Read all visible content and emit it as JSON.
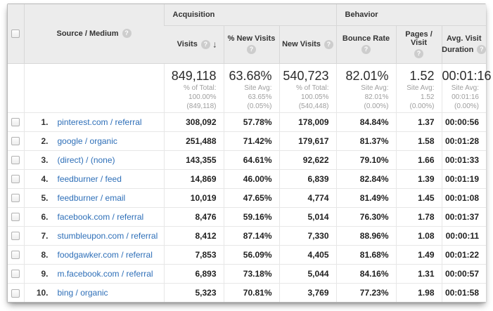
{
  "colors": {
    "link": "#2E6FB8",
    "header_bg": "#ececec"
  },
  "icons": {
    "help": "?",
    "sort_desc": "↓"
  },
  "header": {
    "source_medium": "Source / Medium",
    "acquisition": "Acquisition",
    "behavior": "Behavior",
    "visits": "Visits",
    "pct_new_visits": "% New Visits",
    "new_visits": "New Visits",
    "bounce_rate": "Bounce Rate",
    "pages_visit": "Pages / Visit",
    "avg_duration_line1": "Avg. Visit",
    "avg_duration_line2": "Duration"
  },
  "summary": {
    "visits": {
      "value": "849,118",
      "sub1": "% of Total:",
      "sub2": "100.00%",
      "sub3": "(849,118)"
    },
    "pct_new_visits": {
      "value": "63.68%",
      "sub1": "Site Avg:",
      "sub2": "63.65%",
      "sub3": "(0.05%)"
    },
    "new_visits": {
      "value": "540,723",
      "sub1": "% of Total:",
      "sub2": "100.05%",
      "sub3": "(540,448)"
    },
    "bounce_rate": {
      "value": "82.01%",
      "sub1": "Site Avg:",
      "sub2": "82.01%",
      "sub3": "(0.00%)"
    },
    "pages_visit": {
      "value": "1.52",
      "sub1": "Site Avg:",
      "sub2": "1.52 (0.00%)"
    },
    "avg_duration": {
      "value": "00:01:16",
      "sub1": "Site Avg:",
      "sub2": "00:01:16",
      "sub3": "(0.00%)"
    }
  },
  "rows": [
    {
      "index": "1.",
      "source": "pinterest.com / referral",
      "visits": "308,092",
      "pct_new_visits": "57.78%",
      "new_visits": "178,009",
      "bounce_rate": "84.84%",
      "pages_visit": "1.37",
      "avg_duration": "00:00:56"
    },
    {
      "index": "2.",
      "source": "google / organic",
      "visits": "251,488",
      "pct_new_visits": "71.42%",
      "new_visits": "179,617",
      "bounce_rate": "81.37%",
      "pages_visit": "1.58",
      "avg_duration": "00:01:28"
    },
    {
      "index": "3.",
      "source": "(direct) / (none)",
      "visits": "143,355",
      "pct_new_visits": "64.61%",
      "new_visits": "92,622",
      "bounce_rate": "79.10%",
      "pages_visit": "1.66",
      "avg_duration": "00:01:33"
    },
    {
      "index": "4.",
      "source": "feedburner / feed",
      "visits": "14,869",
      "pct_new_visits": "46.00%",
      "new_visits": "6,839",
      "bounce_rate": "82.84%",
      "pages_visit": "1.39",
      "avg_duration": "00:01:19"
    },
    {
      "index": "5.",
      "source": "feedburner / email",
      "visits": "10,019",
      "pct_new_visits": "47.65%",
      "new_visits": "4,774",
      "bounce_rate": "81.49%",
      "pages_visit": "1.45",
      "avg_duration": "00:01:08"
    },
    {
      "index": "6.",
      "source": "facebook.com / referral",
      "visits": "8,476",
      "pct_new_visits": "59.16%",
      "new_visits": "5,014",
      "bounce_rate": "76.30%",
      "pages_visit": "1.78",
      "avg_duration": "00:01:37"
    },
    {
      "index": "7.",
      "source": "stumbleupon.com / referral",
      "visits": "8,412",
      "pct_new_visits": "87.14%",
      "new_visits": "7,330",
      "bounce_rate": "88.96%",
      "pages_visit": "1.08",
      "avg_duration": "00:00:11"
    },
    {
      "index": "8.",
      "source": "foodgawker.com / referral",
      "visits": "7,853",
      "pct_new_visits": "56.09%",
      "new_visits": "4,405",
      "bounce_rate": "81.68%",
      "pages_visit": "1.49",
      "avg_duration": "00:01:22"
    },
    {
      "index": "9.",
      "source": "m.facebook.com / referral",
      "visits": "6,893",
      "pct_new_visits": "73.18%",
      "new_visits": "5,044",
      "bounce_rate": "84.16%",
      "pages_visit": "1.31",
      "avg_duration": "00:00:57"
    },
    {
      "index": "10.",
      "source": "bing / organic",
      "visits": "5,323",
      "pct_new_visits": "70.81%",
      "new_visits": "3,769",
      "bounce_rate": "77.23%",
      "pages_visit": "1.98",
      "avg_duration": "00:01:58"
    }
  ]
}
